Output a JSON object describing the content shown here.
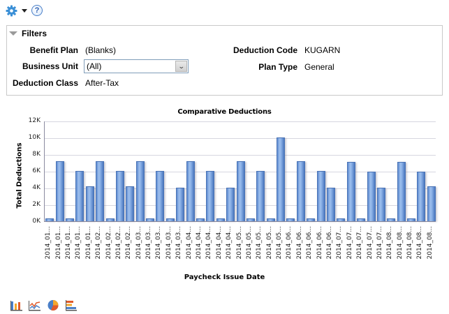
{
  "toolbar": {
    "settings_icon": "gear-icon",
    "menu_icon": "caret-down-icon",
    "help_label": "?"
  },
  "filters": {
    "title": "Filters",
    "benefit_plan_label": "Benefit Plan",
    "benefit_plan_value": "(Blanks)",
    "business_unit_label": "Business Unit",
    "business_unit_value": "(All)",
    "deduction_class_label": "Deduction Class",
    "deduction_class_value": "After-Tax",
    "deduction_code_label": "Deduction Code",
    "deduction_code_value": "KUGARN",
    "plan_type_label": "Plan Type",
    "plan_type_value": "General"
  },
  "chart_types": [
    "bar-chart-icon",
    "line-chart-icon",
    "pie-chart-icon",
    "horizontal-bar-chart-icon"
  ],
  "chart_data": {
    "type": "bar",
    "title": "Comparative Deductions",
    "xlabel": "Paycheck Issue Date",
    "ylabel": "Total Deductions",
    "ylim": [
      0,
      12000
    ],
    "yticks": [
      "0K",
      "2K",
      "4K",
      "6K",
      "8K",
      "10K",
      "12K"
    ],
    "grid": true,
    "legend": null,
    "color": "#6f9ad8",
    "categories": [
      "2014_01...",
      "2014_01...",
      "2014_01...",
      "2014_01...",
      "2014_01...",
      "2014_02...",
      "2014_02...",
      "2014_02...",
      "2014_02...",
      "2014_03...",
      "2014_03...",
      "2014_03...",
      "2014_03...",
      "2014_03...",
      "2014_04...",
      "2014_04...",
      "2014_04...",
      "2014_04...",
      "2014_04...",
      "2014_05...",
      "2014_05...",
      "2014_05...",
      "2014_05...",
      "2014_05...",
      "2014_06...",
      "2014_06...",
      "2014_06...",
      "2014_06...",
      "2014_06...",
      "2014_07...",
      "2014_07...",
      "2014_07...",
      "2014_07...",
      "2014_07...",
      "2014_08...",
      "2014_08...",
      "2014_08...",
      "2014_08...",
      "2014_08..."
    ],
    "values": [
      300,
      7200,
      300,
      6000,
      4200,
      7200,
      300,
      6000,
      4200,
      7200,
      300,
      6000,
      300,
      4000,
      7200,
      300,
      6000,
      300,
      4000,
      7200,
      300,
      6000,
      300,
      10000,
      300,
      7200,
      300,
      6000,
      4000,
      300,
      7100,
      300,
      5900,
      4000,
      300,
      7100,
      300,
      5900,
      4200
    ]
  }
}
